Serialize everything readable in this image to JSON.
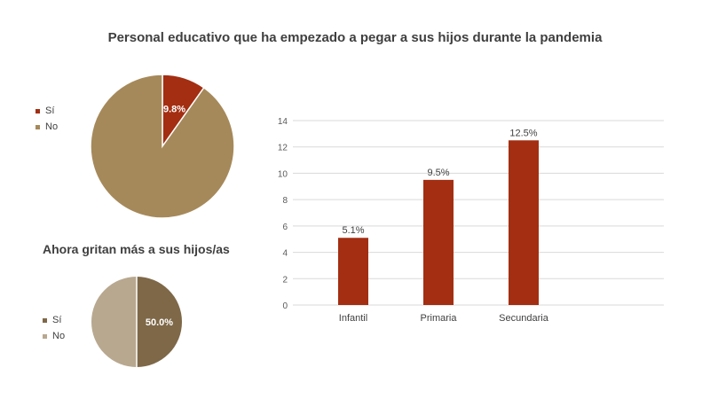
{
  "title": "Personal educativo que ha empezado a pegar a sus hijos durante la pandemia",
  "colors": {
    "si_red": "#a32e12",
    "no_tan": "#a6895a",
    "si_brown": "#7e6848",
    "no_light": "#b8a88f",
    "bar": "#a32e12",
    "grid": "#d9d9d9"
  },
  "chart_data": [
    {
      "type": "pie",
      "title": "",
      "labels": [
        "Sí",
        "No"
      ],
      "values": [
        9.8,
        90.2
      ],
      "data_labels": [
        "9.8%",
        ""
      ],
      "legend": "left"
    },
    {
      "type": "pie",
      "title": "Ahora gritan más a sus hijos/as",
      "labels": [
        "Sí",
        "No"
      ],
      "values": [
        50.0,
        50.0
      ],
      "data_labels": [
        "50.0%",
        ""
      ],
      "legend": "left"
    },
    {
      "type": "bar",
      "title": "",
      "categories": [
        "Infantil",
        "Primaria",
        "Secundaria"
      ],
      "values": [
        5.1,
        9.5,
        12.5
      ],
      "data_labels": [
        "5.1%",
        "9.5%",
        "12.5%"
      ],
      "ylim": [
        0,
        14
      ],
      "yticks": [
        "0",
        "2",
        "4",
        "6",
        "8",
        "10",
        "12",
        "14"
      ],
      "xlabel": "",
      "ylabel": "",
      "grid": true
    }
  ]
}
